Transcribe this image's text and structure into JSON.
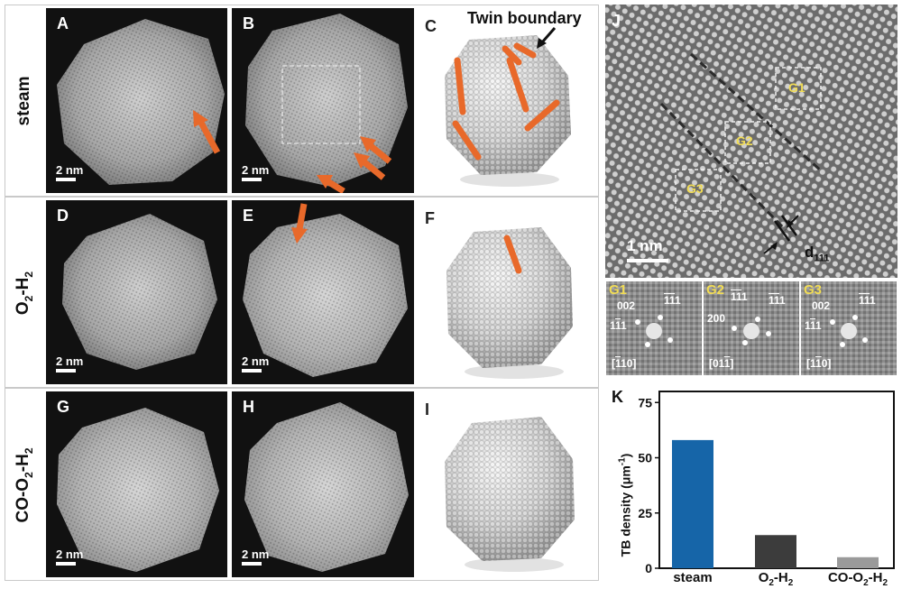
{
  "rows": [
    {
      "label": "steam"
    },
    {
      "label_main": "O",
      "label_sub1": "2",
      "label_mid": "-H",
      "label_sub2": "2"
    },
    {
      "label_main": "CO-O",
      "label_sub1": "2",
      "label_mid": "-H",
      "label_sub2": "2"
    }
  ],
  "panels": {
    "A": "A",
    "B": "B",
    "C": "C",
    "D": "D",
    "E": "E",
    "F": "F",
    "G": "G",
    "H": "H",
    "I": "I",
    "J": "J",
    "K": "K"
  },
  "scale_bar": "2 nm",
  "twin_boundary_label": "Twin boundary",
  "hrtem": {
    "scale_bar": "1 nm",
    "d_label": "d",
    "d_sub": "111",
    "regions": [
      "G1",
      "G2",
      "G3"
    ]
  },
  "fft": [
    {
      "label": "G1",
      "a": "002",
      "b": "1",
      "b2": "1",
      "c": "1",
      "c2": "11",
      "zone_pre": "[",
      "zone_ov": "1",
      "zone_post": "10]"
    },
    {
      "label": "G2",
      "a": "200",
      "b": "1",
      "b2": "1",
      "c": "",
      "c2": "",
      "zone_pre": "[01",
      "zone_ov": "1",
      "zone_post": "]"
    },
    {
      "label": "G3",
      "a": "002",
      "b": "1",
      "b2": "1",
      "c": "1",
      "c2": "11",
      "zone_pre": "[1",
      "zone_ov": "1",
      "zone_post": "0]"
    }
  ],
  "colors": {
    "accent_orange": "#e8692a",
    "bar_steam": "#1665a8",
    "bar_o2h2": "#3c3c3c",
    "bar_coo2h2": "#9a9a9a",
    "label_yellow": "#f1dc55"
  },
  "chart_data": {
    "type": "bar",
    "categories": [
      "steam",
      "O2-H2",
      "CO-O2-H2"
    ],
    "category_labels": [
      {
        "main": "steam",
        "sub1": "",
        "mid": "",
        "sub2": ""
      },
      {
        "main": "O",
        "sub1": "2",
        "mid": "-H",
        "sub2": "2"
      },
      {
        "main": "CO-O",
        "sub1": "2",
        "mid": "-H",
        "sub2": "2"
      }
    ],
    "values": [
      58,
      15,
      5
    ],
    "ylabel_main": "TB density (μm",
    "ylabel_sup": "-1",
    "ylabel_end": ")",
    "ylim": [
      0,
      80
    ],
    "yticks": [
      0,
      25,
      50,
      75
    ],
    "grid": false
  }
}
